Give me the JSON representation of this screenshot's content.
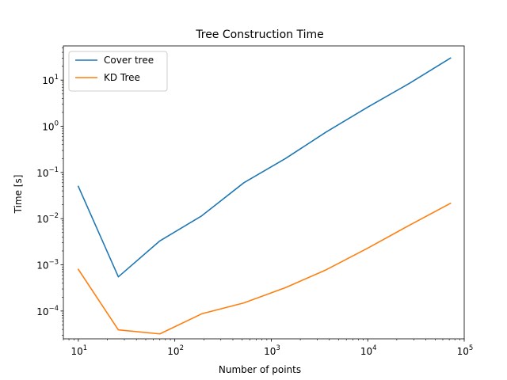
{
  "chart_data": {
    "type": "line",
    "title": "Tree Construction Time",
    "xlabel": "Number of points",
    "ylabel": "Time [s]",
    "xscale": "log",
    "yscale": "log",
    "xlim": [
      7,
      100000
    ],
    "ylim": [
      2.5e-05,
      55
    ],
    "x_ticks": [
      {
        "value": 10,
        "base": "10",
        "exp": "1"
      },
      {
        "value": 100,
        "base": "10",
        "exp": "2"
      },
      {
        "value": 1000,
        "base": "10",
        "exp": "3"
      },
      {
        "value": 10000,
        "base": "10",
        "exp": "4"
      },
      {
        "value": 100000,
        "base": "10",
        "exp": "5"
      }
    ],
    "y_ticks": [
      {
        "value": 0.0001,
        "base": "10",
        "exp": "−4"
      },
      {
        "value": 0.001,
        "base": "10",
        "exp": "−3"
      },
      {
        "value": 0.01,
        "base": "10",
        "exp": "−2"
      },
      {
        "value": 0.1,
        "base": "10",
        "exp": "−1"
      },
      {
        "value": 1,
        "base": "10",
        "exp": "0"
      },
      {
        "value": 10,
        "base": "10",
        "exp": "1"
      }
    ],
    "grid": false,
    "legend_position": "top-left",
    "series": [
      {
        "name": "Cover tree",
        "color": "#1f77b4",
        "x": [
          10,
          26,
          70,
          190,
          520,
          1400,
          3700,
          10000,
          27000,
          72000
        ],
        "y": [
          0.05,
          0.00055,
          0.0033,
          0.0115,
          0.06,
          0.2,
          0.75,
          2.6,
          8.5,
          30
        ]
      },
      {
        "name": "KD Tree",
        "color": "#ff7f0e",
        "x": [
          10,
          26,
          70,
          190,
          520,
          1400,
          3700,
          10000,
          27000,
          72000
        ],
        "y": [
          0.0008,
          3.9e-05,
          3.2e-05,
          8.7e-05,
          0.00015,
          0.00032,
          0.00078,
          0.0023,
          0.0072,
          0.0215
        ]
      }
    ]
  }
}
